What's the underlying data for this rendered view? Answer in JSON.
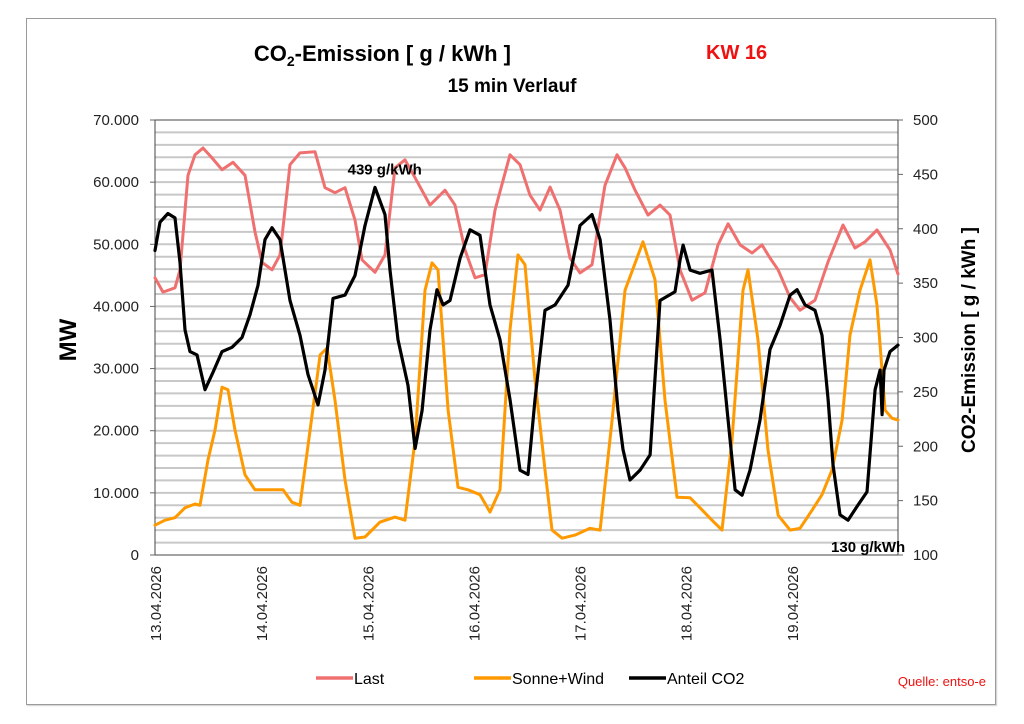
{
  "chart_data": {
    "type": "line",
    "title": "CO2-Emission [ g / kWh ]",
    "title_parts": {
      "pre": "CO",
      "sub": "2",
      "post": "-Emission [ g / kWh ]"
    },
    "subtitle": "15 min Verlauf",
    "week_label": "KW 16",
    "xlabel": "",
    "ylabel": "MW",
    "y2label": "CO2-Emission [ g / kWh ]",
    "ylim": [
      0,
      70000
    ],
    "y2lim": [
      100,
      500
    ],
    "xlim_days": [
      0,
      7
    ],
    "grid": true,
    "minor_grid_step_mw": 2000,
    "y_ticks": [
      {
        "value": 0,
        "label": "0"
      },
      {
        "value": 10000,
        "label": "10.000"
      },
      {
        "value": 20000,
        "label": "20.000"
      },
      {
        "value": 30000,
        "label": "30.000"
      },
      {
        "value": 40000,
        "label": "40.000"
      },
      {
        "value": 50000,
        "label": "50.000"
      },
      {
        "value": 60000,
        "label": "60.000"
      },
      {
        "value": 70000,
        "label": "70.000"
      }
    ],
    "y2_ticks": [
      {
        "value": 100,
        "label": "100"
      },
      {
        "value": 150,
        "label": "150"
      },
      {
        "value": 200,
        "label": "200"
      },
      {
        "value": 250,
        "label": "250"
      },
      {
        "value": 300,
        "label": "300"
      },
      {
        "value": 350,
        "label": "350"
      },
      {
        "value": 400,
        "label": "400"
      },
      {
        "value": 450,
        "label": "450"
      },
      {
        "value": 500,
        "label": "500"
      }
    ],
    "x_ticks": [
      {
        "day": 0,
        "label": "13.04.2026"
      },
      {
        "day": 1,
        "label": "14.04.2026"
      },
      {
        "day": 2,
        "label": "15.04.2026"
      },
      {
        "day": 3,
        "label": "16.04.2026"
      },
      {
        "day": 4,
        "label": "17.04.2026"
      },
      {
        "day": 5,
        "label": "18.04.2026"
      },
      {
        "day": 6,
        "label": "19.04.2026"
      }
    ],
    "legend_position": "bottom",
    "series": [
      {
        "name": "Last",
        "axis": "left",
        "color": "#f07070",
        "x": [
          0.0,
          0.075,
          0.188,
          0.236,
          0.311,
          0.377,
          0.452,
          0.537,
          0.631,
          0.735,
          0.848,
          0.942,
          1.008,
          1.102,
          1.178,
          1.272,
          1.366,
          1.507,
          1.602,
          1.696,
          1.79,
          1.884,
          1.95,
          2.073,
          2.167,
          2.261,
          2.355,
          2.45,
          2.591,
          2.732,
          2.826,
          2.921,
          3.015,
          3.109,
          3.203,
          3.345,
          3.439,
          3.533,
          3.627,
          3.722,
          3.816,
          3.91,
          4.004,
          4.117,
          4.24,
          4.353,
          4.428,
          4.523,
          4.645,
          4.758,
          4.852,
          4.946,
          5.059,
          5.182,
          5.304,
          5.399,
          5.512,
          5.625,
          5.719,
          5.794,
          5.87,
          5.983,
          6.077,
          6.218,
          6.341,
          6.482,
          6.595,
          6.69,
          6.802,
          6.925,
          7.0
        ],
        "values": [
          44600,
          42300,
          43000,
          45900,
          61100,
          64400,
          65500,
          63900,
          62000,
          63200,
          61100,
          52000,
          47100,
          45900,
          48300,
          62800,
          64700,
          64900,
          59100,
          58300,
          59100,
          53900,
          47500,
          45500,
          48300,
          62300,
          63600,
          60700,
          56300,
          58700,
          56300,
          49100,
          44600,
          45100,
          55500,
          64400,
          62800,
          57900,
          55500,
          59200,
          55500,
          47800,
          45400,
          46700,
          59500,
          64400,
          62300,
          58700,
          54700,
          56300,
          54700,
          45900,
          41000,
          42200,
          49900,
          53300,
          49900,
          48600,
          49900,
          47800,
          45900,
          41400,
          39400,
          41000,
          47200,
          53100,
          49400,
          50400,
          52300,
          49100,
          45200
        ]
      },
      {
        "name": "Sonne+Wind",
        "axis": "left",
        "color": "#ff9900",
        "x": [
          0.0,
          0.094,
          0.188,
          0.283,
          0.377,
          0.424,
          0.499,
          0.565,
          0.631,
          0.688,
          0.754,
          0.848,
          0.942,
          1.036,
          1.131,
          1.206,
          1.291,
          1.366,
          1.461,
          1.555,
          1.621,
          1.696,
          1.79,
          1.884,
          1.978,
          2.12,
          2.261,
          2.355,
          2.45,
          2.544,
          2.61,
          2.666,
          2.761,
          2.855,
          2.949,
          3.062,
          3.156,
          3.25,
          3.345,
          3.42,
          3.486,
          3.58,
          3.674,
          3.74,
          3.835,
          3.957,
          4.098,
          4.193,
          4.306,
          4.428,
          4.598,
          4.711,
          4.805,
          4.918,
          5.041,
          5.135,
          5.248,
          5.342,
          5.436,
          5.54,
          5.587,
          5.681,
          5.775,
          5.87,
          5.983,
          6.077,
          6.19,
          6.284,
          6.378,
          6.473,
          6.548,
          6.642,
          6.736,
          6.802,
          6.878,
          6.944,
          7.0
        ],
        "values": [
          4800,
          5600,
          6000,
          7600,
          8200,
          8000,
          15300,
          20100,
          27000,
          26600,
          20100,
          12900,
          10500,
          10500,
          10500,
          10500,
          8500,
          8000,
          20100,
          32200,
          33300,
          24900,
          12100,
          2700,
          2900,
          5300,
          6100,
          5600,
          18500,
          42600,
          47000,
          45900,
          23300,
          10900,
          10500,
          9700,
          6900,
          10500,
          36200,
          48300,
          46700,
          28200,
          13700,
          4000,
          2700,
          3200,
          4300,
          4000,
          21700,
          42600,
          50400,
          44300,
          24900,
          9300,
          9200,
          7600,
          5600,
          4000,
          18500,
          42600,
          45900,
          34600,
          16900,
          6400,
          4000,
          4300,
          7200,
          9700,
          13700,
          21700,
          35400,
          42600,
          47500,
          40200,
          23300,
          22000,
          21700
        ]
      },
      {
        "name": "Anteil CO2",
        "axis": "right",
        "color": "#000000",
        "x": [
          0.0,
          0.047,
          0.122,
          0.188,
          0.236,
          0.283,
          0.33,
          0.396,
          0.471,
          0.546,
          0.631,
          0.725,
          0.82,
          0.895,
          0.97,
          1.036,
          1.102,
          1.178,
          1.272,
          1.366,
          1.441,
          1.536,
          1.602,
          1.677,
          1.79,
          1.884,
          1.978,
          2.073,
          2.167,
          2.214,
          2.289,
          2.384,
          2.45,
          2.516,
          2.591,
          2.657,
          2.714,
          2.779,
          2.874,
          2.968,
          3.062,
          3.156,
          3.25,
          3.345,
          3.439,
          3.514,
          3.58,
          3.674,
          3.769,
          3.891,
          4.004,
          4.117,
          4.193,
          4.287,
          4.362,
          4.409,
          4.475,
          4.569,
          4.664,
          4.758,
          4.899,
          4.946,
          4.975,
          5.041,
          5.135,
          5.248,
          5.324,
          5.399,
          5.465,
          5.531,
          5.606,
          5.7,
          5.794,
          5.888,
          5.983,
          6.049,
          6.124,
          6.218,
          6.284,
          6.341,
          6.388,
          6.454,
          6.529,
          6.623,
          6.708,
          6.784,
          6.831,
          6.85,
          6.868,
          6.925,
          7.0
        ],
        "values": [
          380,
          406,
          414,
          410,
          369,
          307,
          287,
          284,
          252,
          268,
          287,
          291,
          300,
          321,
          348,
          390,
          401,
          390,
          334,
          302,
          266,
          238,
          270,
          336,
          339,
          357,
          403,
          438,
          413,
          362,
          298,
          256,
          198,
          233,
          307,
          344,
          330,
          334,
          373,
          399,
          394,
          330,
          298,
          243,
          178,
          174,
          243,
          325,
          330,
          348,
          403,
          413,
          390,
          316,
          233,
          197,
          169,
          178,
          192,
          334,
          342,
          371,
          385,
          362,
          359,
          362,
          298,
          224,
          160,
          155,
          178,
          224,
          289,
          311,
          339,
          344,
          330,
          325,
          302,
          243,
          183,
          137,
          132,
          146,
          158,
          252,
          270,
          229,
          270,
          287,
          293
        ]
      }
    ],
    "annotations": [
      {
        "text": "439 g/kWh",
        "day": 2.07,
        "value": 439,
        "axis": "right",
        "placement": "above"
      },
      {
        "text": "130 g/kWh",
        "day": 6.53,
        "value": 130,
        "axis": "right",
        "placement": "below"
      }
    ],
    "source_note": "Quelle: entso-e"
  },
  "colors": {
    "last": "#f07070",
    "sonne_wind": "#ff9900",
    "co2": "#000000",
    "week_label": "#ee1111",
    "source": "#ee1111",
    "grid": "#c8c8c8"
  }
}
